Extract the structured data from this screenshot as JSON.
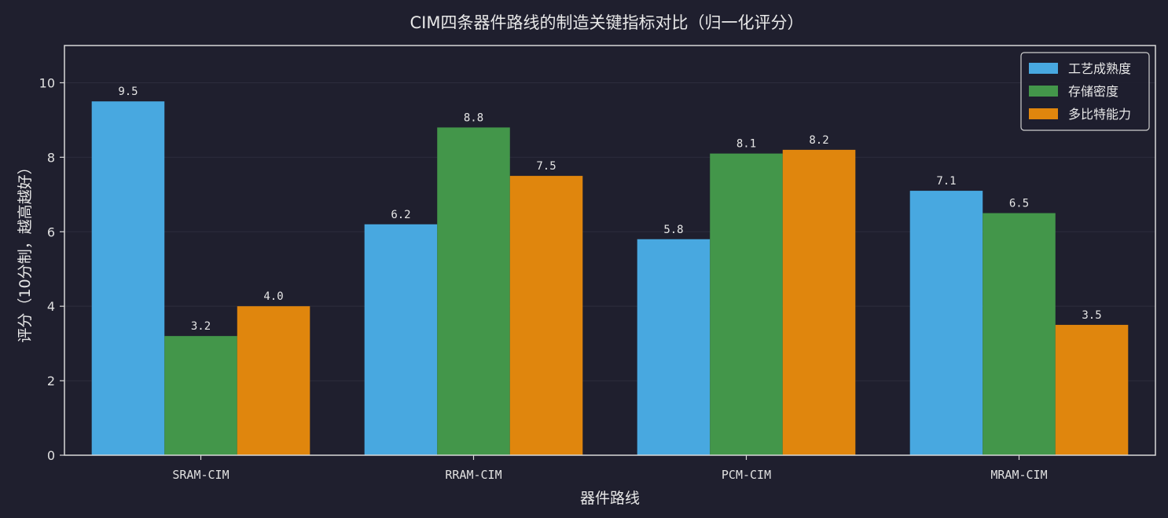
{
  "chart_data": {
    "type": "bar",
    "title": "CIM四条器件路线的制造关键指标对比（归一化评分）",
    "xlabel": "器件路线",
    "ylabel": "评分（10分制，越高越好）",
    "categories": [
      "SRAM-CIM",
      "RRAM-CIM",
      "PCM-CIM",
      "MRAM-CIM"
    ],
    "series": [
      {
        "name": "工艺成熟度",
        "values": [
          9.5,
          6.2,
          5.8,
          7.1
        ],
        "color": "#48a8e0"
      },
      {
        "name": "存储密度",
        "values": [
          3.2,
          8.8,
          8.1,
          6.5
        ],
        "color": "#43964a"
      },
      {
        "name": "多比特能力",
        "values": [
          4.0,
          7.5,
          8.2,
          3.5
        ],
        "color": "#e0860d"
      }
    ],
    "ylim": [
      0,
      11
    ],
    "yticks": [
      0,
      2,
      4,
      6,
      8,
      10
    ],
    "grid": true,
    "legend_position": "top-right",
    "colors": {
      "background": "#1f1f2e",
      "axes": "#d8d8d8",
      "grid": "#2d2d3d"
    }
  }
}
